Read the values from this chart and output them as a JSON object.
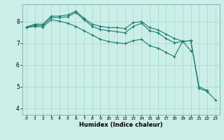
{
  "xlabel": "Humidex (Indice chaleur)",
  "ylabel": "",
  "background_color": "#cceee8",
  "grid_color": "#aaddcc",
  "line_color": "#1a7a6e",
  "xlim": [
    -0.5,
    23.5
  ],
  "ylim": [
    3.7,
    8.8
  ],
  "yticks": [
    4,
    5,
    6,
    7,
    8
  ],
  "xticks": [
    0,
    1,
    2,
    3,
    4,
    5,
    6,
    7,
    8,
    9,
    10,
    11,
    12,
    13,
    14,
    15,
    16,
    17,
    18,
    19,
    20,
    21,
    22,
    23
  ],
  "series": [
    {
      "x": [
        0,
        1,
        2,
        3,
        4,
        5,
        6,
        7,
        8,
        9,
        10,
        11,
        12,
        13,
        14,
        15,
        16,
        17,
        18,
        19,
        20
      ],
      "y": [
        7.75,
        7.88,
        7.88,
        8.25,
        8.25,
        8.3,
        8.48,
        8.15,
        7.88,
        7.78,
        7.72,
        7.72,
        7.68,
        7.95,
        8.0,
        7.72,
        7.62,
        7.42,
        7.22,
        7.1,
        6.65
      ]
    },
    {
      "x": [
        0,
        1,
        2,
        3,
        4,
        5,
        6,
        7,
        8,
        9,
        10,
        11,
        12,
        13,
        14,
        15,
        16,
        17,
        18,
        19,
        20,
        21,
        22
      ],
      "y": [
        7.72,
        7.82,
        7.82,
        8.18,
        8.18,
        8.22,
        8.42,
        8.08,
        7.78,
        7.63,
        7.58,
        7.53,
        7.48,
        7.78,
        7.92,
        7.58,
        7.48,
        7.22,
        7.02,
        7.08,
        7.12,
        5.0,
        4.82
      ]
    },
    {
      "x": [
        0,
        1,
        2,
        3,
        4,
        5,
        6,
        7,
        8,
        9,
        10,
        11,
        12,
        13,
        14,
        15,
        16,
        17,
        18,
        19,
        20,
        21,
        22,
        23
      ],
      "y": [
        7.72,
        7.78,
        7.75,
        8.08,
        8.02,
        7.92,
        7.78,
        7.58,
        7.38,
        7.18,
        7.08,
        7.02,
        6.98,
        7.12,
        7.18,
        6.88,
        6.78,
        6.58,
        6.38,
        7.08,
        7.12,
        4.92,
        4.78,
        4.38
      ]
    }
  ]
}
